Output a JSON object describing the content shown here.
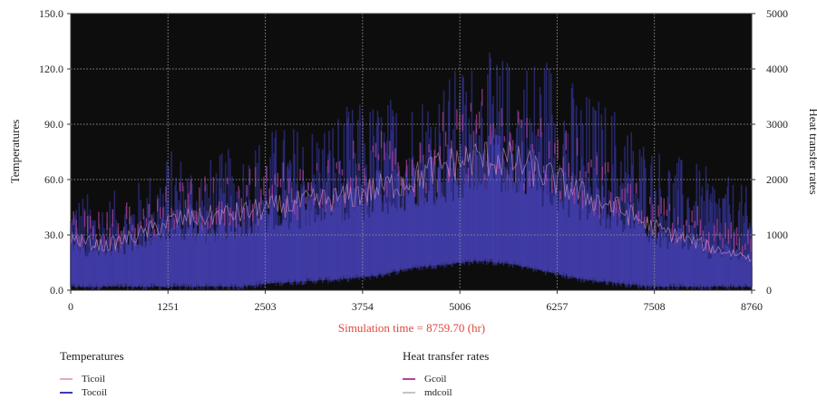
{
  "chart_data": {
    "type": "line",
    "title": "",
    "xlabel": "",
    "ylabel_left": "Temperatures",
    "ylabel_right": "Heat transfer rates",
    "xlim": [
      0,
      8760
    ],
    "ylim_left": [
      0,
      150
    ],
    "ylim_right": [
      0,
      5000
    ],
    "x_ticks": [
      "0",
      "1251",
      "2503",
      "3754",
      "5006",
      "6257",
      "7508",
      "8760"
    ],
    "y_left_ticks": [
      "0.0",
      "30.0",
      "60.0",
      "90.0",
      "120.0",
      "150.0"
    ],
    "y_right_ticks": [
      "0",
      "1000",
      "2000",
      "3000",
      "4000",
      "5000"
    ],
    "grid": true,
    "background": "#0d0d0d",
    "annotation": "Simulation time = 8759.70 (hr)",
    "legend_groups": [
      {
        "title": "Temperatures",
        "entries": [
          {
            "name": "Ticoil",
            "color": "#e6a8c8"
          },
          {
            "name": "Tocoil",
            "color": "#3b3bb0"
          }
        ]
      },
      {
        "title": "Heat transfer rates",
        "entries": [
          {
            "name": "Gcoil",
            "color": "#b0449e"
          },
          {
            "name": "mdcoil",
            "color": "#c4c4c4"
          }
        ]
      }
    ],
    "envelope_note_values": {
      "x": [
        0,
        438,
        876,
        1314,
        1752,
        2190,
        2628,
        3066,
        3504,
        3942,
        4380,
        4818,
        5256,
        5694,
        6132,
        6570,
        7008,
        7446,
        7884,
        8322,
        8760
      ],
      "tocoil_peak": [
        55,
        52,
        60,
        78,
        72,
        80,
        90,
        92,
        100,
        105,
        108,
        118,
        130,
        128,
        132,
        110,
        102,
        82,
        72,
        65,
        55
      ],
      "tocoil_base": [
        0,
        0,
        0,
        0,
        0,
        0,
        2,
        3,
        4,
        6,
        10,
        12,
        14,
        12,
        8,
        4,
        2,
        0,
        0,
        0,
        0
      ],
      "ticoil_mean": [
        28,
        24,
        30,
        38,
        40,
        42,
        45,
        48,
        50,
        55,
        60,
        68,
        72,
        70,
        62,
        52,
        45,
        35,
        28,
        22,
        18
      ]
    }
  }
}
